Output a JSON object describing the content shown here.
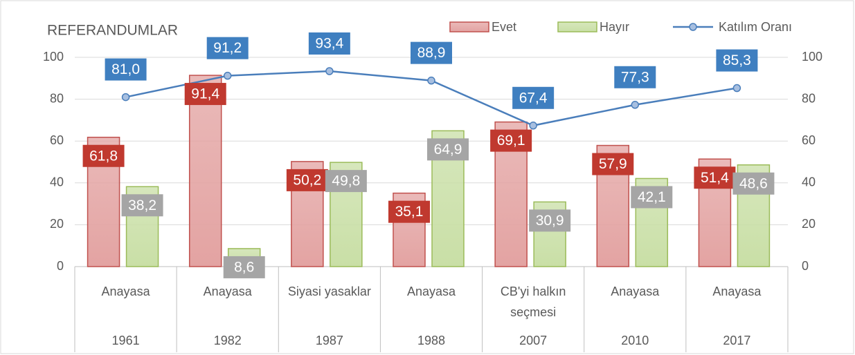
{
  "chart_data": {
    "type": "bar",
    "title": "REFERANDUMLAR",
    "categories": [
      "Anayasa",
      "Anayasa",
      "Siyasi yasaklar",
      "Anayasa",
      "CB'yi halkın seçmesi",
      "Anayasa",
      "Anayasa"
    ],
    "years": [
      "1961",
      "1982",
      "1987",
      "1988",
      "2007",
      "2010",
      "2017"
    ],
    "series": [
      {
        "name": "Evet",
        "type": "bar",
        "color": "#c0504d",
        "fill": "#e3a3a2",
        "values": [
          61.8,
          91.4,
          50.2,
          35.1,
          69.1,
          57.9,
          51.4
        ],
        "value_labels": [
          "61,8",
          "91,4",
          "50,2",
          "35,1",
          "69,1",
          "57,9",
          "51,4"
        ],
        "label_color": "#c0392f"
      },
      {
        "name": "Hayır",
        "type": "bar",
        "color": "#9bbb59",
        "fill": "#c9dfa6",
        "values": [
          38.2,
          8.6,
          49.8,
          64.9,
          30.9,
          42.1,
          48.6
        ],
        "value_labels": [
          "38,2",
          "8,6",
          "49,8",
          "64,9",
          "30,9",
          "42,1",
          "48,6"
        ],
        "label_color": "#a5a5a5"
      },
      {
        "name": "Katılım Oranı",
        "type": "line",
        "axis": "y2",
        "color": "#4a7ebb",
        "marker_fill": "#a7bfe0",
        "values": [
          81.0,
          91.2,
          93.4,
          88.9,
          67.4,
          77.3,
          85.3
        ],
        "value_labels": [
          "81,0",
          "91,2",
          "93,4",
          "88,9",
          "67,4",
          "77,3",
          "85,3"
        ],
        "label_color": "#3f7fc0"
      }
    ],
    "ylim": [
      0,
      100
    ],
    "yticks": [
      0,
      20,
      40,
      60,
      80,
      100
    ],
    "y2lim": [
      0,
      100
    ],
    "y2ticks": [
      0,
      20,
      40,
      60,
      80,
      100
    ],
    "grid": true,
    "legend": "top-right"
  }
}
